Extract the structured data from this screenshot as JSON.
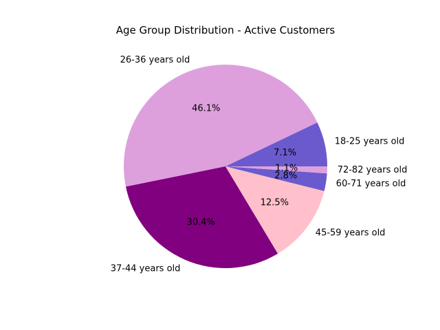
{
  "chart_data": {
    "type": "pie",
    "title": "Age Group Distribution - Active Customers",
    "labels": [
      "18-25 years old",
      "26-36 years old",
      "37-44 years old",
      "45-59 years old",
      "60-71 years old",
      "72-82 years old"
    ],
    "values": [
      7.1,
      46.1,
      30.4,
      12.5,
      2.8,
      1.1
    ],
    "percent_labels": [
      "7.1%",
      "46.1%",
      "30.4%",
      "12.5%",
      "2.8%",
      "1.1%"
    ],
    "colors": [
      "#6a5acd",
      "#dda0dd",
      "#800080",
      "#ffc0cb",
      "#6a5acd",
      "#dda0dd"
    ],
    "start_angle_deg": 0,
    "direction": "counterclockwise",
    "legend": "none"
  }
}
